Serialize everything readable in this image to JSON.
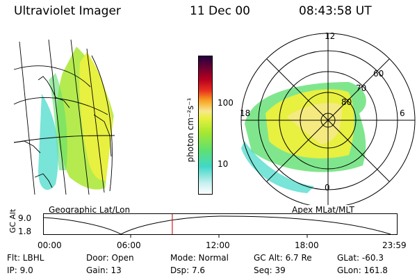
{
  "header": {
    "instrument": "Ultraviolet Imager",
    "date": "11 Dec 00",
    "time": "08:43:58 UT"
  },
  "geo_panel": {
    "caption": "Geographic Lat/Lon"
  },
  "colorbar": {
    "unit_label": "photon cm⁻²s⁻¹",
    "ticks": [
      "100",
      "10"
    ],
    "scale": "log",
    "colors": [
      "#ffffff",
      "#c8f0f0",
      "#40d8c8",
      "#60e070",
      "#a8e830",
      "#e8f040",
      "#f8e890",
      "#f8a020",
      "#e83020",
      "#b80020",
      "#700030",
      "#200040"
    ]
  },
  "polar_panel": {
    "caption": "Apex MLat/MLT",
    "mlt_labels": [
      "12",
      "18",
      "6",
      "0"
    ],
    "lat_labels": [
      "60",
      "70",
      "80"
    ]
  },
  "altitude_plot": {
    "y_title": "GC Alt",
    "y_ticks": [
      "9.0",
      "1.8"
    ],
    "x_ticks": [
      "00:00",
      "06:00",
      "12:00",
      "18:00",
      "23:59"
    ],
    "current_time_fraction": 0.364,
    "marker_color": "#cc2020"
  },
  "status": {
    "filter": "Flt: LBHL",
    "ip": "IP:  9.0",
    "door": "Door: Open",
    "gain": "Gain: 13",
    "mode": "Mode: Normal",
    "dsp": "Dsp:     7.6",
    "gc_alt": "GC Alt: 6.7 Re",
    "seq": "Seq: 39",
    "glat": "GLat: -60.3",
    "glon": "GLon: 161.8"
  }
}
